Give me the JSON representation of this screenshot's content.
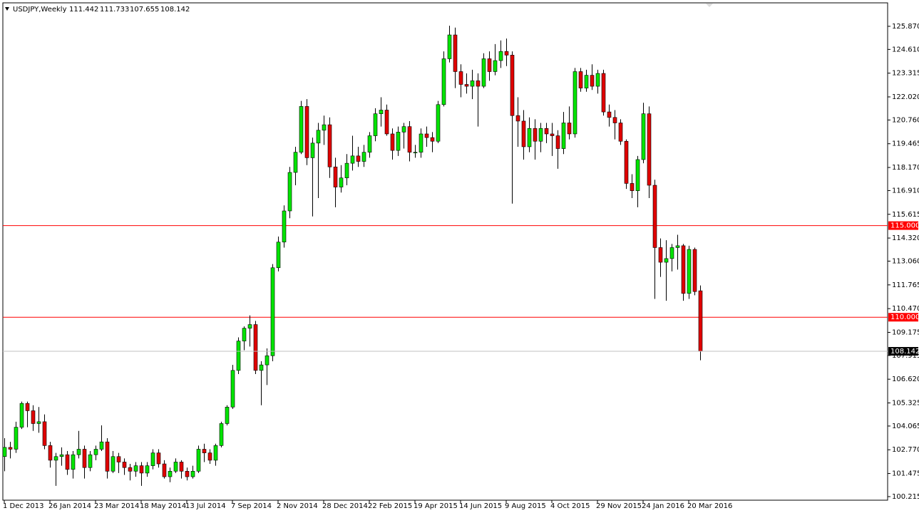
{
  "chart_data": {
    "type": "candlestick",
    "title": "USDJPY,Weekly",
    "up_color": "#00e400",
    "down_color": "#e00000",
    "categories": [
      "1 Dec 2013",
      null,
      null,
      null,
      null,
      null,
      null,
      null,
      "26 Jan 2014",
      null,
      null,
      null,
      null,
      null,
      null,
      null,
      "23 Mar 2014",
      null,
      null,
      null,
      null,
      null,
      null,
      null,
      "18 May 2014",
      null,
      null,
      null,
      null,
      null,
      null,
      null,
      "13 Jul 2014",
      null,
      null,
      null,
      null,
      null,
      null,
      null,
      "7 Sep 2014",
      null,
      null,
      null,
      null,
      null,
      null,
      null,
      "2 Nov 2014",
      null,
      null,
      null,
      null,
      null,
      null,
      null,
      "28 Dec 2014",
      null,
      null,
      null,
      null,
      null,
      null,
      null,
      "22 Feb 2015",
      null,
      null,
      null,
      null,
      null,
      null,
      null,
      "19 Apr 2015",
      null,
      null,
      null,
      null,
      null,
      null,
      null,
      "14 Jun 2015",
      null,
      null,
      null,
      null,
      null,
      null,
      null,
      "9 Aug 2015",
      null,
      null,
      null,
      null,
      null,
      null,
      null,
      "4 Oct 2015",
      null,
      null,
      null,
      null,
      null,
      null,
      null,
      "29 Nov 2015",
      null,
      null,
      null,
      null,
      null,
      null,
      null,
      "24 Jan 2016",
      null,
      null,
      null,
      null,
      null,
      null,
      null,
      "20 Mar 2016",
      null,
      null
    ],
    "open": [
      102.4,
      102.9,
      102.8,
      104.0,
      105.3,
      104.9,
      104.2,
      104.3,
      103.0,
      102.2,
      102.4,
      102.5,
      101.7,
      102.5,
      102.8,
      101.8,
      102.5,
      102.8,
      103.2,
      101.6,
      102.4,
      102.1,
      101.8,
      101.6,
      101.9,
      101.5,
      101.9,
      102.6,
      102.0,
      101.3,
      101.6,
      102.1,
      101.6,
      101.3,
      101.6,
      102.8,
      102.6,
      102.2,
      103.0,
      104.2,
      105.1,
      107.1,
      108.7,
      109.4,
      109.6,
      107.1,
      107.4,
      107.9,
      112.7,
      114.1,
      115.8,
      117.9,
      119.0,
      121.5,
      118.7,
      119.5,
      120.2,
      120.5,
      118.2,
      117.1,
      117.6,
      118.4,
      118.8,
      118.5,
      119.0,
      119.9,
      121.1,
      121.3,
      120.0,
      119.1,
      120.1,
      120.4,
      119.0,
      119.0,
      120.0,
      119.8,
      119.6,
      121.6,
      124.1,
      125.4,
      123.4,
      122.7,
      122.6,
      122.9,
      122.6,
      124.1,
      123.4,
      124.0,
      124.5,
      124.3,
      121.0,
      120.7,
      119.3,
      120.3,
      119.6,
      120.3,
      120.0,
      119.9,
      119.2,
      120.6,
      120.0,
      123.4,
      122.5,
      123.2,
      122.6,
      123.3,
      121.2,
      120.9,
      120.6,
      119.6,
      117.3,
      116.9,
      118.6,
      121.1,
      117.2,
      113.8,
      113.0,
      113.2,
      113.8,
      113.9,
      111.3,
      113.7,
      111.442
    ],
    "high": [
      103.4,
      103.2,
      104.3,
      105.4,
      105.4,
      105.2,
      105.1,
      104.7,
      103.2,
      102.6,
      102.9,
      102.7,
      102.7,
      103.8,
      103.0,
      102.7,
      103.0,
      104.1,
      103.4,
      102.7,
      102.6,
      102.3,
      102.0,
      102.1,
      102.1,
      102.1,
      102.8,
      102.8,
      102.2,
      101.8,
      102.3,
      102.2,
      101.8,
      101.9,
      103.0,
      103.1,
      102.8,
      103.1,
      104.3,
      105.2,
      107.4,
      108.9,
      109.5,
      110.1,
      109.8,
      107.6,
      108.3,
      112.9,
      114.4,
      116.1,
      118.2,
      119.3,
      121.8,
      121.9,
      119.8,
      120.6,
      121.0,
      120.9,
      118.7,
      118.3,
      118.9,
      119.9,
      119.3,
      119.4,
      120.1,
      121.4,
      122.0,
      121.6,
      120.3,
      120.4,
      120.6,
      120.7,
      119.4,
      120.3,
      120.4,
      120.1,
      121.8,
      124.5,
      125.9,
      125.8,
      123.8,
      123.3,
      123.5,
      123.3,
      124.4,
      124.5,
      124.9,
      125.1,
      125.2,
      124.5,
      122.0,
      121.3,
      120.9,
      120.8,
      120.6,
      120.6,
      120.6,
      120.2,
      121.2,
      121.5,
      123.6,
      123.6,
      123.5,
      123.8,
      123.5,
      123.5,
      121.6,
      121.3,
      120.8,
      119.7,
      117.8,
      118.8,
      121.7,
      121.5,
      117.5,
      114.3,
      114.2,
      114.0,
      114.5,
      114.0,
      113.9,
      113.8,
      111.733
    ],
    "low": [
      101.6,
      102.3,
      102.6,
      103.9,
      104.0,
      103.8,
      103.7,
      102.8,
      101.8,
      100.8,
      101.9,
      101.4,
      101.2,
      102.3,
      101.2,
      101.6,
      102.2,
      102.7,
      101.2,
      101.5,
      101.5,
      101.4,
      101.1,
      101.3,
      100.8,
      101.3,
      101.7,
      101.8,
      101.2,
      101.0,
      101.5,
      101.2,
      101.1,
      101.2,
      101.5,
      102.1,
      102.0,
      101.9,
      102.9,
      104.1,
      105.0,
      106.9,
      108.2,
      108.4,
      106.9,
      105.2,
      106.3,
      107.6,
      112.5,
      113.8,
      115.4,
      117.2,
      118.9,
      118.3,
      115.5,
      116.5,
      119.4,
      117.6,
      116.0,
      116.8,
      117.2,
      118.0,
      118.2,
      118.2,
      118.7,
      119.6,
      120.4,
      119.9,
      118.6,
      118.8,
      119.2,
      118.5,
      118.7,
      118.7,
      119.3,
      119.0,
      119.5,
      121.5,
      123.9,
      122.5,
      122.0,
      122.2,
      121.9,
      120.4,
      122.5,
      122.9,
      123.2,
      123.6,
      123.7,
      116.2,
      119.3,
      118.6,
      119.0,
      118.6,
      119.0,
      119.5,
      118.8,
      118.1,
      118.9,
      119.7,
      119.8,
      122.3,
      122.3,
      122.4,
      122.2,
      121.0,
      120.4,
      119.7,
      119.4,
      117.0,
      116.5,
      116.0,
      118.4,
      116.5,
      111.0,
      112.2,
      110.9,
      112.5,
      112.6,
      110.9,
      111.0,
      111.2,
      107.655
    ],
    "close": [
      102.9,
      102.8,
      104.0,
      105.3,
      104.9,
      104.2,
      104.3,
      103.0,
      102.2,
      102.4,
      102.5,
      101.7,
      102.5,
      102.8,
      101.8,
      102.5,
      102.8,
      103.2,
      101.6,
      102.4,
      102.1,
      101.8,
      101.6,
      101.9,
      101.5,
      101.9,
      102.6,
      102.0,
      101.3,
      101.6,
      102.1,
      101.6,
      101.3,
      101.6,
      102.8,
      102.6,
      102.2,
      103.0,
      104.2,
      105.1,
      107.1,
      108.7,
      109.4,
      109.6,
      107.1,
      107.4,
      107.9,
      112.7,
      114.1,
      115.8,
      117.9,
      119.0,
      121.5,
      118.7,
      119.5,
      120.2,
      120.5,
      118.2,
      117.1,
      117.6,
      118.4,
      118.8,
      118.5,
      119.0,
      119.9,
      121.1,
      121.3,
      120.0,
      119.1,
      120.1,
      120.4,
      119.0,
      119.0,
      120.0,
      119.8,
      119.6,
      121.6,
      124.1,
      125.4,
      123.4,
      122.7,
      122.6,
      122.9,
      122.6,
      124.1,
      123.4,
      124.0,
      124.5,
      124.3,
      121.0,
      120.7,
      119.3,
      120.3,
      119.6,
      120.3,
      120.0,
      119.9,
      119.2,
      120.6,
      120.0,
      123.4,
      122.5,
      123.2,
      122.6,
      123.3,
      121.2,
      120.9,
      120.6,
      119.6,
      117.3,
      116.9,
      118.6,
      121.1,
      117.2,
      113.8,
      113.0,
      113.2,
      113.8,
      113.9,
      111.3,
      113.7,
      111.4,
      108.142
    ],
    "ylim": [
      100.02,
      127.15
    ],
    "yticks": [
      {
        "value": 125.87,
        "label": "125.870"
      },
      {
        "value": 124.61,
        "label": "124.610"
      },
      123.315,
      {
        "value": 122.02,
        "label": "122.020"
      },
      {
        "value": 120.76,
        "label": "120.760"
      },
      119.465,
      {
        "value": 118.17,
        "label": "118.170"
      },
      {
        "value": 116.91,
        "label": "116.910"
      },
      115.615,
      {
        "value": 114.32,
        "label": "114.320"
      },
      {
        "value": 113.06,
        "label": "113.060"
      },
      111.765,
      {
        "value": 110.47,
        "label": "110.470"
      },
      109.175,
      107.915,
      {
        "value": 106.62,
        "label": "106.620"
      },
      105.325,
      104.065,
      {
        "value": 102.77,
        "label": "102.770"
      },
      101.475,
      100.215
    ],
    "levels": [
      {
        "value": 115,
        "label": "115.000",
        "color": "#ff0000"
      },
      {
        "value": 110,
        "label": "110.000",
        "color": "#ff0000"
      }
    ],
    "last_price": {
      "value": 108.142,
      "label": "108.142",
      "color": "#c0c0c0"
    }
  }
}
